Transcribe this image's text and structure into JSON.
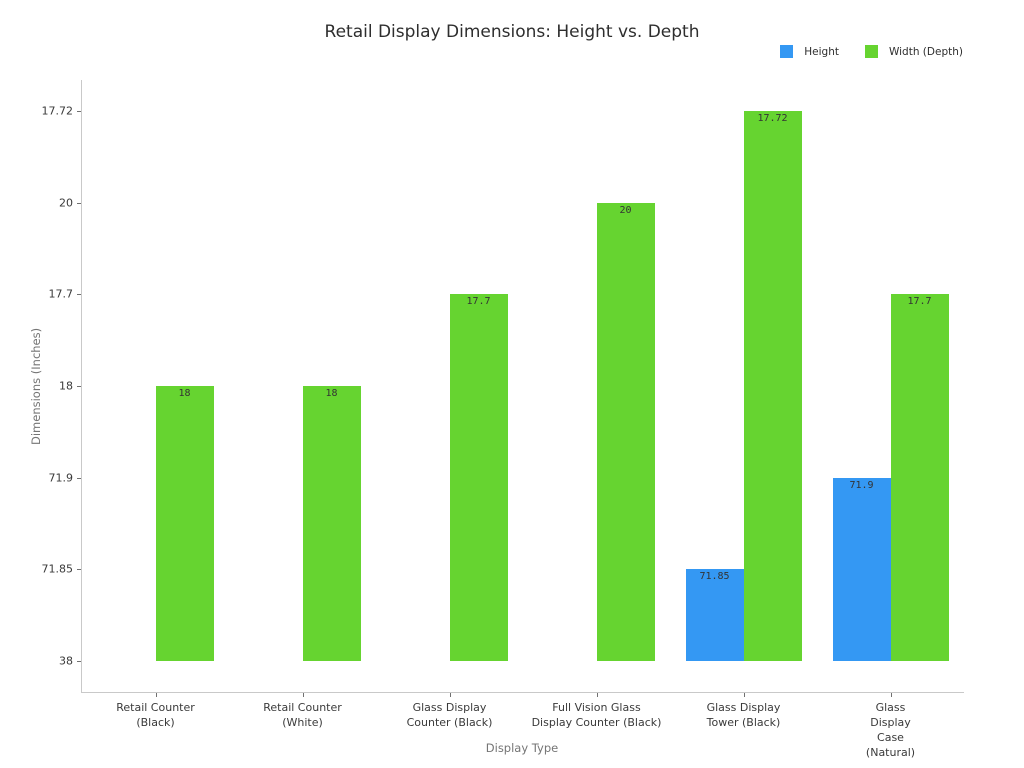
{
  "chart_data": {
    "type": "bar",
    "title": "Retail Display Dimensions: Height vs. Depth",
    "xlabel": "Display Type",
    "ylabel": "Dimensions (Inches)",
    "legend_position": "top-right",
    "grid": false,
    "y_axis": {
      "type": "categorical",
      "tick_order_bottom_to_top": [
        "38",
        "71.85",
        "71.9",
        "18",
        "17.7",
        "20",
        "17.72"
      ]
    },
    "categories": [
      "Retail Counter\n(Black)",
      "Retail Counter\n(White)",
      "Glass Display\nCounter (Black)",
      "Full Vision Glass\nDisplay Counter (Black)",
      "Glass Display\nTower (Black)",
      "Glass Display\nCase (Natural)"
    ],
    "series": [
      {
        "name": "Height",
        "color": "#3498f3",
        "values": [
          38,
          38,
          38,
          38,
          71.85,
          71.9
        ],
        "bar_labels": [
          "",
          "",
          "",
          "",
          "71.85",
          "71.9"
        ]
      },
      {
        "name": "Width (Depth)",
        "color": "#66d430",
        "values": [
          18,
          18,
          17.7,
          20,
          17.72,
          17.7
        ],
        "bar_labels": [
          "18",
          "18",
          "17.7",
          "20",
          "17.72",
          "17.7"
        ]
      }
    ]
  }
}
